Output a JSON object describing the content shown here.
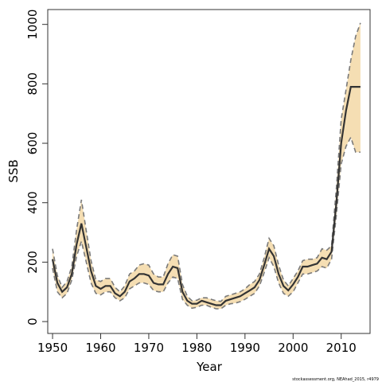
{
  "chart_data": {
    "type": "line",
    "title": "",
    "xlabel": "Year",
    "ylabel": "SSB",
    "xlim": [
      1949,
      2016
    ],
    "ylim": [
      -40,
      1050
    ],
    "x_ticks": [
      1950,
      1960,
      1970,
      1980,
      1990,
      2000,
      2010
    ],
    "y_ticks": [
      0,
      200,
      400,
      600,
      800,
      1000
    ],
    "grid": false,
    "legend": "none",
    "band_color": "#f5deb3",
    "line_color": "#333333",
    "bound_color": "#7a7a7a",
    "series": [
      {
        "role": "estimate",
        "x": [
          1950,
          1951,
          1952,
          1953,
          1954,
          1955,
          1956,
          1957,
          1958,
          1959,
          1960,
          1961,
          1962,
          1963,
          1964,
          1965,
          1966,
          1967,
          1968,
          1969,
          1970,
          1971,
          1972,
          1973,
          1974,
          1975,
          1976,
          1977,
          1978,
          1979,
          1980,
          1981,
          1982,
          1983,
          1984,
          1985,
          1986,
          1987,
          1988,
          1989,
          1990,
          1991,
          1992,
          1993,
          1994,
          1995,
          1996,
          1997,
          1998,
          1999,
          2000,
          2001,
          2002,
          2003,
          2004,
          2005,
          2006,
          2007,
          2008,
          2009,
          2010,
          2011,
          2012,
          2013,
          2014
        ],
        "values": [
          210,
          130,
          100,
          115,
          160,
          260,
          330,
          250,
          170,
          120,
          110,
          120,
          120,
          95,
          85,
          100,
          135,
          145,
          160,
          160,
          155,
          130,
          125,
          125,
          160,
          185,
          180,
          100,
          70,
          60,
          60,
          70,
          65,
          60,
          55,
          55,
          70,
          75,
          80,
          85,
          95,
          105,
          115,
          140,
          190,
          245,
          220,
          160,
          120,
          105,
          125,
          150,
          185,
          185,
          190,
          195,
          215,
          210,
          235,
          400,
          600,
          710,
          790,
          790,
          790
        ]
      },
      {
        "role": "upper-bound",
        "values": [
          245,
          155,
          115,
          135,
          185,
          310,
          410,
          305,
          205,
          140,
          135,
          145,
          145,
          115,
          100,
          120,
          160,
          170,
          190,
          195,
          190,
          160,
          150,
          150,
          195,
          225,
          220,
          125,
          85,
          70,
          72,
          80,
          80,
          75,
          70,
          68,
          85,
          90,
          95,
          100,
          110,
          125,
          135,
          160,
          215,
          280,
          255,
          190,
          140,
          120,
          145,
          170,
          205,
          210,
          210,
          215,
          245,
          240,
          255,
          450,
          680,
          780,
          880,
          960,
          1005
        ]
      },
      {
        "role": "lower-bound",
        "values": [
          180,
          100,
          80,
          95,
          140,
          220,
          270,
          200,
          130,
          95,
          90,
          100,
          100,
          80,
          70,
          80,
          110,
          120,
          130,
          130,
          125,
          105,
          100,
          100,
          130,
          150,
          145,
          75,
          55,
          45,
          48,
          55,
          55,
          48,
          43,
          43,
          55,
          60,
          62,
          67,
          75,
          85,
          95,
          120,
          165,
          215,
          185,
          130,
          95,
          85,
          100,
          130,
          160,
          160,
          165,
          170,
          185,
          180,
          210,
          360,
          530,
          590,
          620,
          570,
          570
        ]
      }
    ]
  },
  "credit": "stockassessment.org, NEAhad_2015, r4979"
}
